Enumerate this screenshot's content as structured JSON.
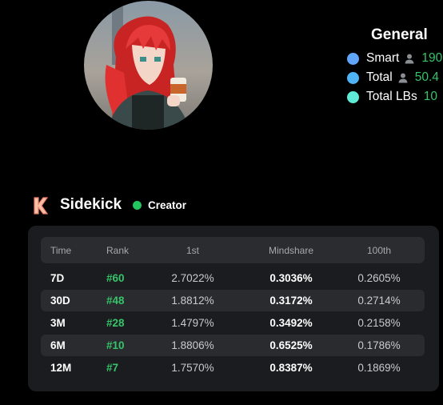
{
  "avatar": {
    "alt": "pixel art avatar"
  },
  "general": {
    "title": "General",
    "stats": [
      {
        "label": "Smart",
        "value": "190",
        "dot_color": "#60a5fa"
      },
      {
        "label": "Total",
        "value": "50.4",
        "dot_color": "#4fb3f6"
      },
      {
        "label": "Total LBs",
        "value": "10",
        "dot_color": "#5eead4"
      }
    ]
  },
  "sidekick": {
    "name": "Sidekick",
    "badge": "Creator",
    "status_color": "#22c55e"
  },
  "table": {
    "headers": {
      "time": "Time",
      "rank": "Rank",
      "first": "1st",
      "mindshare": "Mindshare",
      "hundredth": "100th"
    },
    "rows": [
      {
        "time": "7D",
        "rank": "#60",
        "first": "2.7022%",
        "mindshare": "0.3036%",
        "hundredth": "0.2605%"
      },
      {
        "time": "30D",
        "rank": "#48",
        "first": "1.8812%",
        "mindshare": "0.3172%",
        "hundredth": "0.2714%"
      },
      {
        "time": "3M",
        "rank": "#28",
        "first": "1.4797%",
        "mindshare": "0.3492%",
        "hundredth": "0.2158%"
      },
      {
        "time": "6M",
        "rank": "#10",
        "first": "1.8806%",
        "mindshare": "0.6525%",
        "hundredth": "0.1786%"
      },
      {
        "time": "12M",
        "rank": "#7",
        "first": "1.7570%",
        "mindshare": "0.8387%",
        "hundredth": "0.1869%"
      }
    ]
  }
}
